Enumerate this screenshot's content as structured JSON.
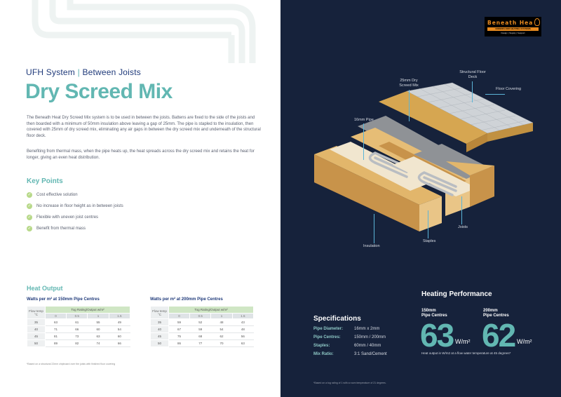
{
  "left": {
    "subtitle_a": "UFH System",
    "subtitle_sep": "|",
    "subtitle_b": "Between Joists",
    "title": "Dry Screed Mix",
    "para1": "The Beneath Heat Dry Screed Mix system is to be used in between the joists. Battens are fixed to the side of the joists and then boarded with a minimum of 50mm insulation above leaving a gap of 25mm. The pipe is stapled to the insulation, then covered with 25mm of dry screed mix, eliminating any air gaps in between the dry screed mix and underneath of the structural floor deck.",
    "para2": "Benefiting from thermal mass, when the pipe heats up, the heat spreads across the dry screed mix and retains the heat for longer, giving an even heat distribution.",
    "key_points_title": "Key Points",
    "key_points": [
      "Cost effective solution",
      "No increase in floor height as in between joists",
      "Flexible with uneven joist centres",
      "Benefit from thermal mass"
    ],
    "heat_output_title": "Heat Output",
    "tables": [
      {
        "caption": "Watts per m² at 150mm Pipe Centres",
        "flow_temp": "Flow temp °C",
        "tog_header": "Tog Rating/Output w/m²",
        "tog_values": [
          "0",
          "0.5",
          "1",
          "1.5"
        ],
        "rows": [
          {
            "temp": "35",
            "vals": [
              "63",
              "61",
              "55",
              "49"
            ]
          },
          {
            "temp": "40",
            "vals": [
              "71",
              "66",
              "60",
              "54"
            ]
          },
          {
            "temp": "45",
            "vals": [
              "81",
              "73",
              "63",
              "60"
            ]
          },
          {
            "temp": "50",
            "vals": [
              "89",
              "82",
              "74",
              "66"
            ]
          }
        ]
      },
      {
        "caption": "Watts per m² at 200mm Pipe Centres",
        "flow_temp": "Flow temp °C",
        "tog_header": "Tog Rating/Output w/m²",
        "tog_values": [
          "0",
          "0.5",
          "1",
          "1.5"
        ],
        "rows": [
          {
            "temp": "35",
            "vals": [
              "59",
              "52",
              "48",
              "43"
            ]
          },
          {
            "temp": "40",
            "vals": [
              "67",
              "59",
              "54",
              "48"
            ]
          },
          {
            "temp": "45",
            "vals": [
              "75",
              "68",
              "62",
              "56"
            ]
          },
          {
            "temp": "50",
            "vals": [
              "86",
              "77",
              "70",
              "63"
            ]
          }
        ]
      }
    ],
    "footnote": "*Based on a structural 22mm chipboard over the joists with finished floor covering"
  },
  "right": {
    "logo": {
      "name": "Beneath Hea",
      "tagline": "UNDERFLOOR HEATING SYSTEMS",
      "sub": "Design | Supply | Support"
    },
    "callouts": {
      "structural_deck": "Structural Floor Deck",
      "floor_covering": "Floor Covering",
      "dry_screed": "25mm Dry Screed Mix",
      "pipe": "16mm Pipe",
      "joists": "Joists",
      "staples": "Staples",
      "insulation": "Insulation"
    },
    "specifications": {
      "title": "Specifications",
      "rows": [
        {
          "key": "Pipe Diameter:",
          "value": "16mm x 2mm"
        },
        {
          "key": "Pipe Centres:",
          "value": "150mm / 200mm"
        },
        {
          "key": "Staples:",
          "value": "60mm / 40mm"
        },
        {
          "key": "Mix Ratio:",
          "value": "3:1 Sand/Cement"
        }
      ]
    },
    "heating_performance": {
      "title": "Heating Performance",
      "items": [
        {
          "label_a": "150mm",
          "label_b": "Pipe Centres",
          "value": "63",
          "unit": "W/m²"
        },
        {
          "label_a": "200mm",
          "label_b": "Pipe Centres",
          "value": "62",
          "unit": "W/m²"
        }
      ],
      "note": "Heat output in W/m2 at a flow water temperature at 45 degrees*"
    },
    "footnote": "*Based on a tog rating of 1 with a room temperature of 21 degrees."
  },
  "colors": {
    "accent": "#62b7b2",
    "navy": "#16223b",
    "heading_blue": "#1f3a7a",
    "logo_orange": "#e88a1f"
  }
}
